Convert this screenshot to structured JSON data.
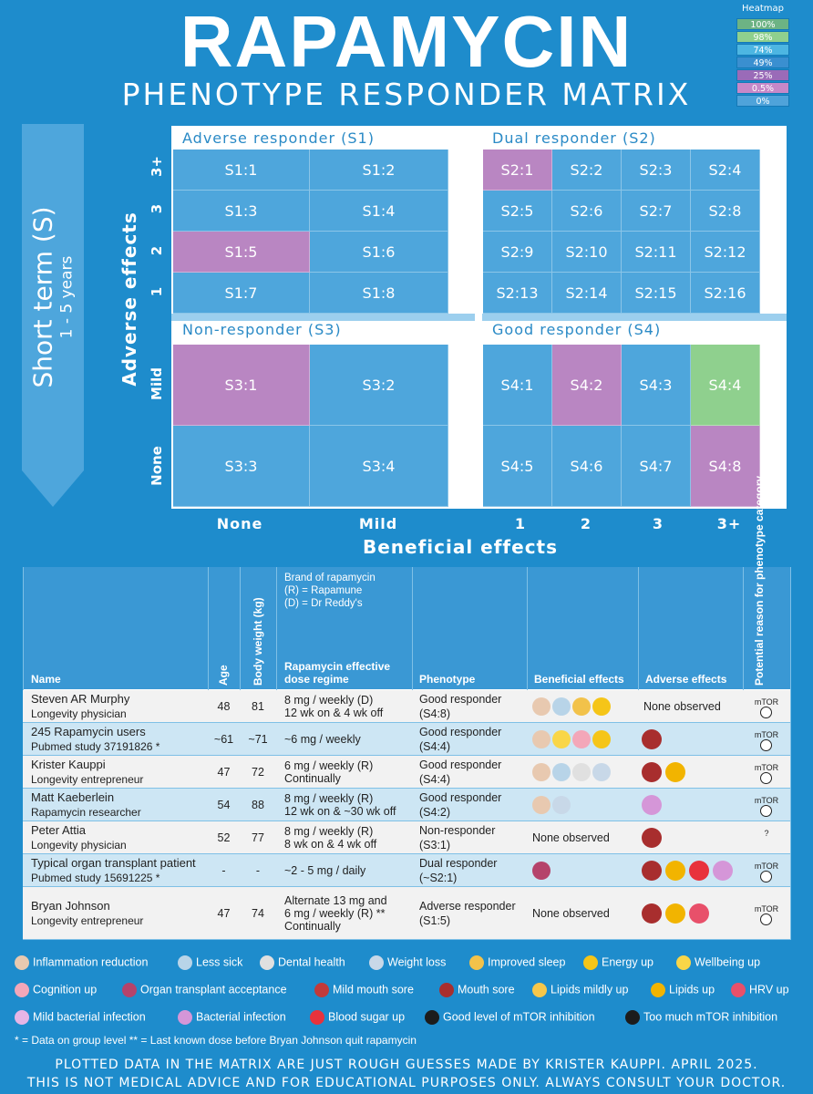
{
  "title": "RAPAMYCIN",
  "subtitle": "PHENOTYPE RESPONDER MATRIX",
  "heatmap_legend": {
    "title": "Heatmap",
    "levels": [
      {
        "label": "100%",
        "color": "#6db384"
      },
      {
        "label": "98%",
        "color": "#8fd08e"
      },
      {
        "label": "74%",
        "color": "#4db6e2"
      },
      {
        "label": "49%",
        "color": "#3a8fd0"
      },
      {
        "label": "25%",
        "color": "#9a6bb8"
      },
      {
        "label": "0.5%",
        "color": "#c688c8"
      },
      {
        "label": "0%",
        "color": "#4fa3da"
      }
    ]
  },
  "side_arrow": {
    "main": "Short term (S)",
    "sub": "1 - 5 years"
  },
  "chart_data": {
    "type": "heatmap",
    "xlabel": "Beneficial effects",
    "ylabel": "Adverse effects",
    "x_ticks": [
      "None",
      "Mild",
      "1",
      "2",
      "3",
      "3+"
    ],
    "y_ticks_top": [
      "3+",
      "3",
      "2",
      "1"
    ],
    "y_ticks_bottom": [
      "Mild",
      "None"
    ],
    "quadrants": [
      {
        "name": "Adverse responder (S1)",
        "cells": [
          "S1:1",
          "S1:2",
          "S1:3",
          "S1:4",
          "S1:5",
          "S1:6",
          "S1:7",
          "S1:8"
        ],
        "highlight": {
          "S1:5": "purple"
        }
      },
      {
        "name": "Dual responder (S2)",
        "cells": [
          "S2:1",
          "S2:2",
          "S2:3",
          "S2:4",
          "S2:5",
          "S2:6",
          "S2:7",
          "S2:8",
          "S2:9",
          "S2:10",
          "S2:11",
          "S2:12",
          "S2:13",
          "S2:14",
          "S2:15",
          "S2:16"
        ],
        "highlight": {
          "S2:1": "purple"
        }
      },
      {
        "name": "Non-responder (S3)",
        "cells": [
          "S3:1",
          "S3:2",
          "S3:3",
          "S3:4"
        ],
        "highlight": {
          "S3:1": "purple"
        }
      },
      {
        "name": "Good responder (S4)",
        "cells": [
          "S4:1",
          "S4:2",
          "S4:3",
          "S4:4",
          "S4:5",
          "S4:6",
          "S4:7",
          "S4:8"
        ],
        "highlight": {
          "S4:2": "purple",
          "S4:4": "green",
          "S4:8": "purple"
        }
      }
    ]
  },
  "table": {
    "headers": {
      "name": "Name",
      "age": "Age",
      "weight": "Body weight (kg)",
      "brand_note_1": "Brand of rapamycin",
      "brand_note_2": "(R) = Rapamune",
      "brand_note_3": "(D) = Dr Reddy's",
      "dose": "Rapamycin effective dose regime",
      "phenotype": "Phenotype",
      "beneficial": "Beneficial effects",
      "adverse": "Adverse effects",
      "reason": "Potential reason for phenotype category"
    },
    "rows": [
      {
        "name": "Steven AR Murphy",
        "role": "Longevity physician",
        "age": "48",
        "weight": "81",
        "dose1": "8 mg / weekly (D)",
        "dose2": "12 wk on & 4 wk off",
        "dose3": "",
        "pheno1": "Good responder",
        "pheno2": "(S4:8)",
        "ben_icons": [
          "inflammation",
          "less-sick",
          "improved-sleep",
          "energy-up"
        ],
        "adv_text": "None observed",
        "adv_icons": [],
        "reason": "mTOR"
      },
      {
        "name": "245 Rapamycin users",
        "role": "Pubmed study 37191826 *",
        "age": "~61",
        "weight": "~71",
        "dose1": "~6 mg / weekly",
        "dose2": "",
        "dose3": "",
        "pheno1": "Good responder",
        "pheno2": "(S4:4)",
        "ben_icons": [
          "inflammation",
          "wellbeing",
          "cognition",
          "energy-up"
        ],
        "adv_text": "",
        "adv_icons": [
          "mouth-sore"
        ],
        "reason": "mTOR"
      },
      {
        "name": "Krister Kauppi",
        "role": "Longevity entrepreneur",
        "age": "47",
        "weight": "72",
        "dose1": "6 mg / weekly (R)",
        "dose2": "Continually",
        "dose3": "",
        "pheno1": "Good responder",
        "pheno2": "(S4:4)",
        "ben_icons": [
          "inflammation",
          "less-sick",
          "dental",
          "weight-loss"
        ],
        "adv_text": "",
        "adv_icons": [
          "mouth-sore",
          "lipids"
        ],
        "reason": "mTOR"
      },
      {
        "name": "Matt Kaeberlein",
        "role": "Rapamycin researcher",
        "age": "54",
        "weight": "88",
        "dose1": "8 mg / weekly (R)",
        "dose2": "12 wk on & ~30 wk off",
        "dose3": "",
        "pheno1": "Good responder",
        "pheno2": "(S4:2)",
        "ben_icons": [
          "inflammation",
          "weight-loss"
        ],
        "adv_text": "",
        "adv_icons": [
          "bacterial"
        ],
        "reason": "mTOR"
      },
      {
        "name": "Peter Attia",
        "role": "Longevity physician",
        "age": "52",
        "weight": "77",
        "dose1": "8 mg / weekly (R)",
        "dose2": "8 wk on & 4 wk off",
        "dose3": "",
        "pheno1": "Non-responder",
        "pheno2": "(S3:1)",
        "ben_icons": [],
        "ben_text": "None observed",
        "adv_text": "",
        "adv_icons": [
          "mouth-sore"
        ],
        "reason": "?"
      },
      {
        "name": "Typical organ transplant patient",
        "role": "Pubmed study 15691225 *",
        "age": "-",
        "weight": "-",
        "dose1": "~2 - 5 mg / daily",
        "dose2": "",
        "dose3": "",
        "pheno1": "Dual responder",
        "pheno2": "(~S2:1)",
        "ben_icons": [
          "organ"
        ],
        "adv_text": "",
        "adv_icons": [
          "mouth-sore",
          "lipids",
          "blood-sugar",
          "bacterial"
        ],
        "reason": "mTOR"
      },
      {
        "name": "Bryan Johnson",
        "role": "Longevity entrepreneur",
        "age": "47",
        "weight": "74",
        "dose1": "Alternate 13 mg and",
        "dose2": "6 mg / weekly (R) **",
        "dose3": "Continually",
        "pheno1": "Adverse responder",
        "pheno2": "(S1:5)",
        "ben_icons": [],
        "ben_text": "None observed",
        "adv_text": "",
        "adv_icons": [
          "mouth-sore",
          "lipids",
          "hrv"
        ],
        "reason": "mTOR"
      }
    ]
  },
  "icon_legend": [
    {
      "icon": "inflammation",
      "label": "Inflammation reduction",
      "color": "#e8c9b0"
    },
    {
      "icon": "less-sick",
      "label": "Less sick",
      "color": "#b8d4e8"
    },
    {
      "icon": "dental",
      "label": "Dental health",
      "color": "#e0e0e0"
    },
    {
      "icon": "weight-loss",
      "label": "Weight loss",
      "color": "#c8d8e8"
    },
    {
      "icon": "improved-sleep",
      "label": "Improved sleep",
      "color": "#f2c24a"
    },
    {
      "icon": "energy-up",
      "label": "Energy up",
      "color": "#f5c518"
    },
    {
      "icon": "wellbeing",
      "label": "Wellbeing up",
      "color": "#f9d648"
    },
    {
      "icon": "cognition",
      "label": "Cognition up",
      "color": "#f3a7b9"
    },
    {
      "icon": "organ",
      "label": "Organ transplant acceptance",
      "color": "#b5436b"
    },
    {
      "icon": "mild-mouth-sore",
      "label": "Mild mouth sore",
      "color": "#c23a3a"
    },
    {
      "icon": "mouth-sore",
      "label": "Mouth sore",
      "color": "#a82e2e"
    },
    {
      "icon": "lipids-mild",
      "label": "Lipids mildly up",
      "color": "#f7c74a"
    },
    {
      "icon": "lipids",
      "label": "Lipids up",
      "color": "#f2b400"
    },
    {
      "icon": "hrv",
      "label": "HRV up",
      "color": "#e8506a"
    },
    {
      "icon": "mild-bacterial",
      "label": "Mild bacterial infection",
      "color": "#e6b5e6"
    },
    {
      "icon": "bacterial",
      "label": "Bacterial infection",
      "color": "#d596d8"
    },
    {
      "icon": "blood-sugar",
      "label": "Blood sugar up",
      "color": "#e8323c"
    },
    {
      "icon": "mtor-good",
      "label": "Good level of mTOR inhibition",
      "color": "#1c1c1c"
    },
    {
      "icon": "mtor-much",
      "label": "Too much mTOR inhibition",
      "color": "#1c1c1c"
    }
  ],
  "notes": "* = Data on group level   ** = Last known dose before Bryan Johnson quit rapamycin",
  "footer_1": "PLOTTED DATA IN THE MATRIX ARE JUST ROUGH GUESSES MADE BY KRISTER KAUPPI. APRIL 2025.",
  "footer_2": "THIS IS NOT MEDICAL ADVICE AND FOR EDUCATIONAL PURPOSES ONLY. ALWAYS CONSULT YOUR DOCTOR.",
  "colors": {
    "cell": "#4ea6dc",
    "purple": "#b986c2",
    "green": "#8fd08e",
    "bg": "#1e8ccc",
    "table_head": "#3a98d4",
    "row_alt": "#cde6f4"
  }
}
